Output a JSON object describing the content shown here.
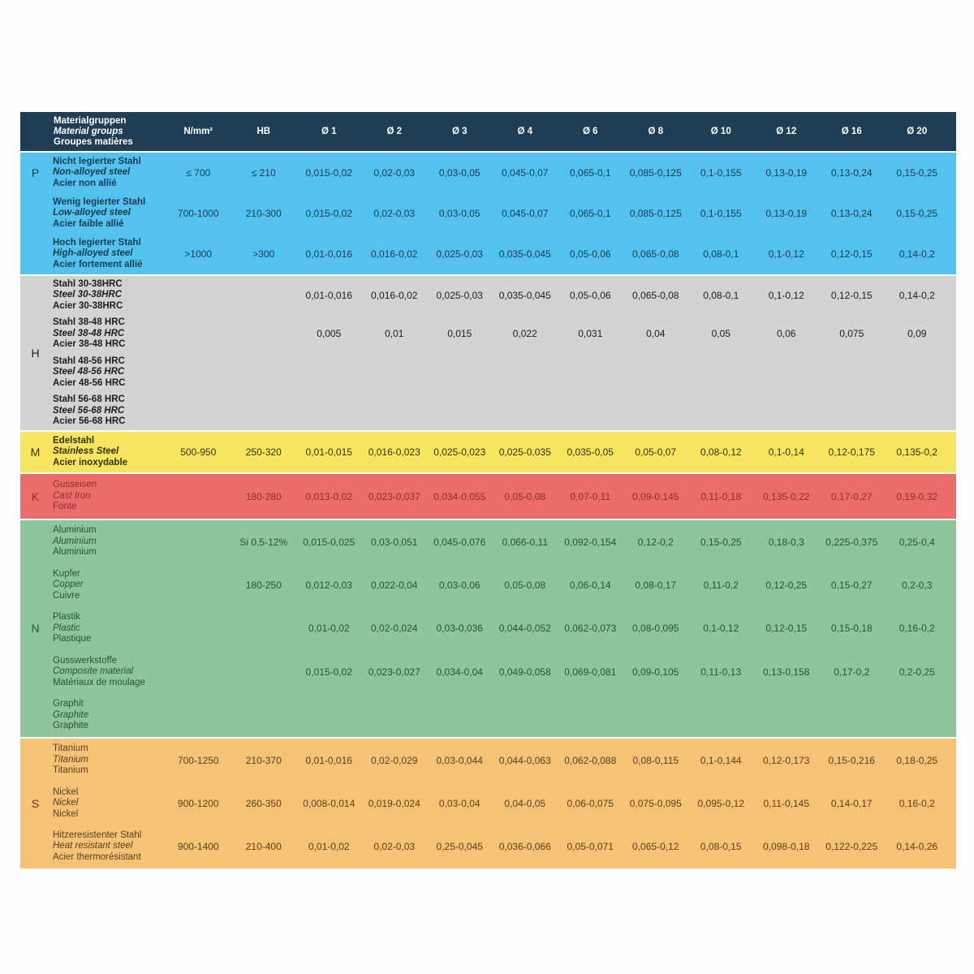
{
  "colors": {
    "header_bg": "#1f3e55",
    "header_text": "#ffffff",
    "page_bg": "#fdfdfd"
  },
  "header": {
    "material_lines": [
      "Materialgruppen",
      "Material groups",
      "Groupes matières"
    ],
    "columns": [
      "N/mm²",
      "HB",
      "Ø 1",
      "Ø 2",
      "Ø 3",
      "Ø 4",
      "Ø 6",
      "Ø 8",
      "Ø 10",
      "Ø 12",
      "Ø 16",
      "Ø 20"
    ]
  },
  "sections": [
    {
      "letter": "P",
      "bg": "#54c2ee",
      "text": "#163a50",
      "rows": [
        {
          "names": [
            "Nicht legierter Stahl",
            "Non-alloyed steel",
            "Acier non allié"
          ],
          "values": [
            "≤ 700",
            "≤ 210",
            "0,015-0,02",
            "0,02-0,03",
            "0,03-0,05",
            "0,045-0,07",
            "0,065-0,1",
            "0,085-0,125",
            "0,1-0,155",
            "0,13-0,19",
            "0,13-0,24",
            "0,15-0,25"
          ]
        },
        {
          "names": [
            "Wenig legierter Stahl",
            "Low-alloyed steel",
            "Acier faible allié"
          ],
          "values": [
            "700-1000",
            "210-300",
            "0,015-0,02",
            "0,02-0,03",
            "0,03-0,05",
            "0,045-0,07",
            "0,065-0,1",
            "0,085-0,125",
            "0,1-0,155",
            "0,13-0,19",
            "0,13-0,24",
            "0,15-0,25"
          ]
        },
        {
          "names": [
            "Hoch legierter Stahl",
            "High-alloyed steel",
            "Acier fortement allié"
          ],
          "values": [
            ">1000",
            ">300",
            "0,01-0,016",
            "0,016-0,02",
            "0,025-0,03",
            "0,035-0,045",
            "0,05-0,06",
            "0,065-0,08",
            "0,08-0,1",
            "0,1-0,12",
            "0,12-0,15",
            "0,14-0,2"
          ]
        }
      ]
    },
    {
      "letter": "H",
      "bg": "#d3d3d3",
      "text": "#1c1c1c",
      "rows": [
        {
          "names": [
            "Stahl 30-38HRC",
            "Steel 30-38HRC",
            "Acier 30-38HRC"
          ],
          "values": [
            "",
            "",
            "0,01-0,016",
            "0,016-0,02",
            "0,025-0,03",
            "0,035-0,045",
            "0,05-0,06",
            "0,065-0,08",
            "0,08-0,1",
            "0,1-0,12",
            "0,12-0,15",
            "0,14-0,2"
          ]
        },
        {
          "names": [
            "Stahl 38-48 HRC",
            "Steel 38-48 HRC",
            "Acier 38-48 HRC"
          ],
          "values": [
            "",
            "",
            "0,005",
            "0,01",
            "0,015",
            "0,022",
            "0,031",
            "0,04",
            "0,05",
            "0,06",
            "0,075",
            "0,09"
          ]
        },
        {
          "names": [
            "Stahl 48-56 HRC",
            "Steel 48-56 HRC",
            "Acier 48-56 HRC"
          ],
          "values": [
            "",
            "",
            "",
            "",
            "",
            "",
            "",
            "",
            "",
            "",
            "",
            ""
          ]
        },
        {
          "names": [
            "Stahl 56-68 HRC",
            "Steel 56-68 HRC",
            "Acier 56-68 HRC"
          ],
          "values": [
            "",
            "",
            "",
            "",
            "",
            "",
            "",
            "",
            "",
            "",
            "",
            ""
          ]
        }
      ]
    },
    {
      "letter": "M",
      "bg": "#f8e55f",
      "text": "#33300c",
      "rows": [
        {
          "names": [
            "Edelstahl",
            "Stainless Steel",
            "Acier inoxydable"
          ],
          "values": [
            "500-950",
            "250-320",
            "0,01-0,015",
            "0,016-0,023",
            "0,025-0,023",
            "0,025-0,035",
            "0,035-0,05",
            "0,05-0,07",
            "0,08-0,12",
            "0,1-0,14",
            "0,12-0,175",
            "0,135-0,2"
          ]
        }
      ]
    },
    {
      "letter": "K",
      "bg": "#ea6d6c",
      "text": "#8c2e2b",
      "rows": [
        {
          "names": [
            "Gusseisen",
            "Cast Iron",
            "Fonte"
          ],
          "values": [
            "",
            "180-280",
            "0,013-0,02",
            "0,023-0,037",
            "0,034-0,055",
            "0,05-0,08",
            "0,07-0,11",
            "0,09-0,145",
            "0,11-0,18",
            "0,135-0,22",
            "0,17-0,27",
            "0,19-0,32"
          ]
        }
      ]
    },
    {
      "letter": "N",
      "bg": "#8ec69b",
      "text": "#28522f",
      "rows": [
        {
          "names": [
            "Aluminium",
            "Aluminium",
            "Aluminium"
          ],
          "values": [
            "",
            "Si 0,5-12%",
            "0,015-0,025",
            "0,03-0,051",
            "0,045-0,076",
            "0,066-0,11",
            "0,092-0,154",
            "0,12-0,2",
            "0,15-0,25",
            "0,18-0,3",
            "0,225-0,375",
            "0,25-0,4"
          ]
        },
        {
          "names": [
            "Kupfer",
            "Copper",
            "Cuivre"
          ],
          "values": [
            "",
            "180-250",
            "0,012-0,03",
            "0,022-0,04",
            "0,03-0,06",
            "0,05-0,08",
            "0,06-0,14",
            "0,08-0,17",
            "0,11-0,2",
            "0,12-0,25",
            "0,15-0,27",
            "0,2-0,3"
          ]
        },
        {
          "names": [
            "Plastik",
            "Plastic",
            "Plastique"
          ],
          "values": [
            "",
            "",
            "0,01-0,02",
            "0,02-0,024",
            "0,03-0,036",
            "0,044-0,052",
            "0,062-0,073",
            "0,08-0,095",
            "0,1-0,12",
            "0,12-0,15",
            "0,15-0,18",
            "0,16-0,2"
          ]
        },
        {
          "names": [
            "Gusswerkstoffe",
            "Composite material",
            "Matériaux de moulage"
          ],
          "values": [
            "",
            "",
            "0,015-0,02",
            "0,023-0,027",
            "0,034-0,04",
            "0,049-0,058",
            "0,069-0,081",
            "0,09-0,105",
            "0,11-0,13",
            "0,13-0,158",
            "0,17-0,2",
            "0,2-0,25"
          ]
        },
        {
          "names": [
            "Graphit",
            "Graphite",
            "Graphite"
          ],
          "values": [
            "",
            "",
            "",
            "",
            "",
            "",
            "",
            "",
            "",
            "",
            "",
            ""
          ]
        }
      ]
    },
    {
      "letter": "S",
      "bg": "#f5c276",
      "text": "#57411c",
      "rows": [
        {
          "names": [
            "Titanium",
            "Titanium",
            "Titanium"
          ],
          "values": [
            "700-1250",
            "210-370",
            "0,01-0,016",
            "0,02-0,029",
            "0,03-0,044",
            "0,044-0,063",
            "0,062-0,088",
            "0,08-0,115",
            "0,1-0,144",
            "0,12-0,173",
            "0,15-0,216",
            "0,18-0,25"
          ]
        },
        {
          "names": [
            "Nickel",
            "Nickel",
            "Nickel"
          ],
          "values": [
            "900-1200",
            "260-350",
            "0,008-0,014",
            "0,019-0,024",
            "0,03-0,04",
            "0,04-0,05",
            "0,06-0,075",
            "0,075-0,095",
            "0,095-0,12",
            "0,11-0,145",
            "0,14-0,17",
            "0,16-0,2"
          ]
        },
        {
          "names": [
            "Hitzeresistenter Stahl",
            "Heat resistant steel",
            "Acier thermorésistant"
          ],
          "values": [
            "900-1400",
            "210-400",
            "0,01-0,02",
            "0,02-0,03",
            "0,25-0,045",
            "0,036-0,066",
            "0,05-0,071",
            "0,065-0,12",
            "0,08-0,15",
            "0,098-0,18",
            "0,122-0,225",
            "0,14-0,26"
          ]
        }
      ]
    }
  ]
}
